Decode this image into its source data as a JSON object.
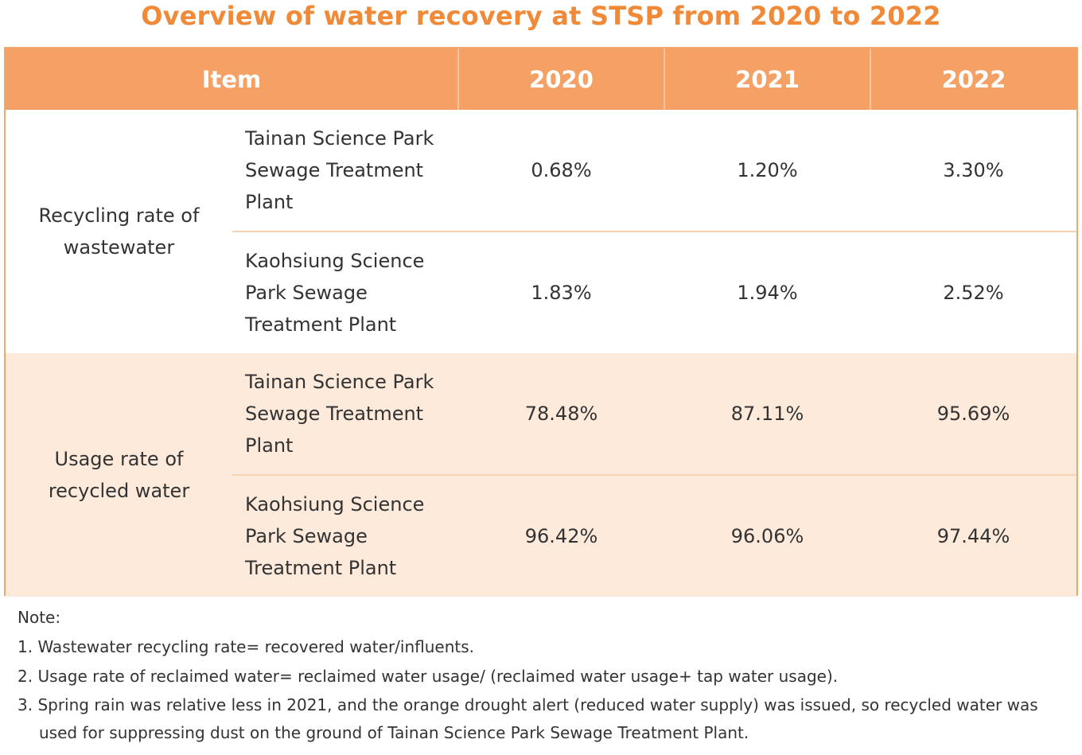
{
  "title": "Overview of water recovery at STSP from 2020 to 2022",
  "colors": {
    "accent": "#f08a38",
    "header_bg": "#f5a064",
    "alt_row_bg": "#fdeadb",
    "border": "#f5a56a"
  },
  "table": {
    "headers": [
      "Item",
      "2020",
      "2021",
      "2022"
    ],
    "groups": [
      {
        "category": "Recycling rate of wastewater",
        "rows": [
          {
            "plant": "Tainan Science Park Sewage Treatment Plant",
            "values": [
              "0.68%",
              "1.20%",
              "3.30%"
            ]
          },
          {
            "plant": "Kaohsiung Science Park Sewage Treatment Plant",
            "values": [
              "1.83%",
              "1.94%",
              "2.52%"
            ]
          }
        ]
      },
      {
        "category": "Usage rate of recycled water",
        "rows": [
          {
            "plant": "Tainan Science Park Sewage Treatment Plant",
            "values": [
              "78.48%",
              "87.11%",
              "95.69%"
            ]
          },
          {
            "plant": "Kaohsiung Science Park Sewage Treatment Plant",
            "values": [
              "96.42%",
              "96.06%",
              "97.44%"
            ]
          }
        ]
      }
    ]
  },
  "notes": {
    "heading": "Note:",
    "items": [
      "1. Wastewater recycling rate= recovered water/influents.",
      "2. Usage rate of reclaimed water= reclaimed water usage/ (reclaimed water usage+ tap water usage).",
      "3. Spring rain was relative less in 2021, and the orange drought alert (reduced water supply) was issued, so recycled water was used for suppressing dust on the ground of Tainan Science Park Sewage Treatment Plant."
    ]
  }
}
